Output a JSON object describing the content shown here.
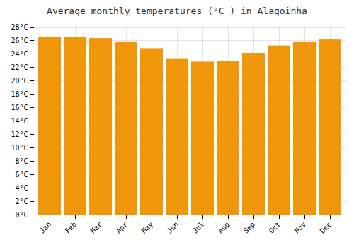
{
  "chart_data": {
    "type": "bar",
    "title": "Average monthly temperatures (°C ) in Alagoinha",
    "categories": [
      "Jan",
      "Feb",
      "Mar",
      "Apr",
      "May",
      "Jun",
      "Jul",
      "Aug",
      "Sep",
      "Oct",
      "Nov",
      "Dec"
    ],
    "values": [
      26.5,
      26.5,
      26.3,
      25.8,
      24.8,
      23.3,
      22.8,
      22.9,
      24.1,
      25.2,
      25.8,
      26.2
    ],
    "color": "#F0960A",
    "ylim": [
      0,
      28
    ],
    "yticks": [
      {
        "value": 0,
        "label": "0°C"
      },
      {
        "value": 2,
        "label": "2°C"
      },
      {
        "value": 4,
        "label": "4°C"
      },
      {
        "value": 6,
        "label": "6°C"
      },
      {
        "value": 8,
        "label": "8°C"
      },
      {
        "value": 10,
        "label": "10°C"
      },
      {
        "value": 12,
        "label": "12°C"
      },
      {
        "value": 14,
        "label": "14°C"
      },
      {
        "value": 16,
        "label": "16°C"
      },
      {
        "value": 18,
        "label": "18°C"
      },
      {
        "value": 20,
        "label": "20°C"
      },
      {
        "value": 22,
        "label": "22°C"
      },
      {
        "value": 24,
        "label": "24°C"
      },
      {
        "value": 26,
        "label": "26°C"
      },
      {
        "value": 28,
        "label": "28°C"
      }
    ],
    "grid": true
  }
}
